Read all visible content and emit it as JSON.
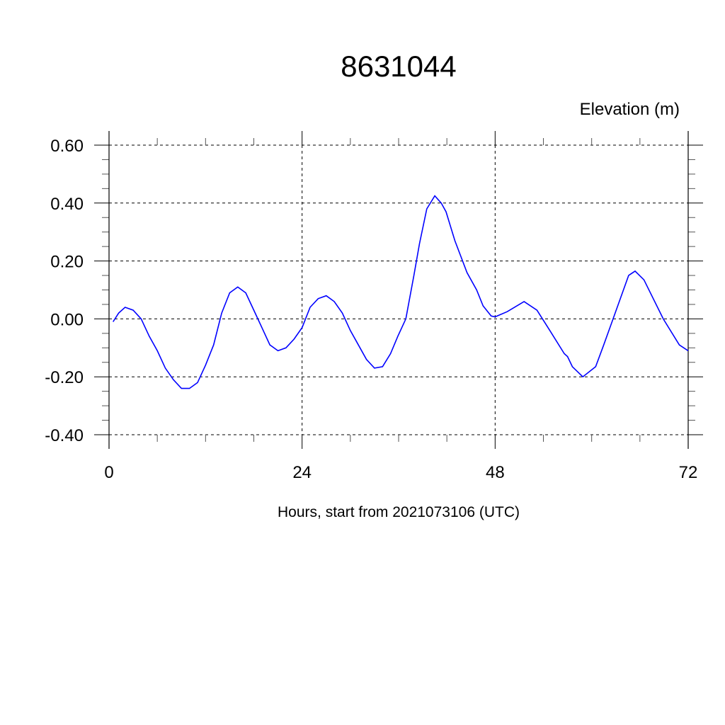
{
  "chart_data": {
    "type": "line",
    "title": "8631044",
    "subtitle": "Elevation (m)",
    "xlabel": "Hours, start from 2021073106 (UTC)",
    "ylabel": "",
    "xlim": [
      0,
      72
    ],
    "ylim": [
      -0.4,
      0.6
    ],
    "xticks": [
      0,
      24,
      48,
      72
    ],
    "xtick_labels": [
      "0",
      "24",
      "48",
      "72"
    ],
    "yticks": [
      0.6,
      0.4,
      0.2,
      0.0,
      -0.2,
      -0.4
    ],
    "ytick_labels": [
      "0.60",
      "0.40",
      "0.20",
      "0.00",
      "-0.20",
      "-0.40"
    ],
    "grid": true,
    "line_color": "#0000ff",
    "series": [
      {
        "name": "Elevation",
        "x": [
          0.5,
          1.2,
          2,
          3,
          4,
          5,
          6,
          7,
          8,
          9,
          10,
          11,
          12,
          13,
          14,
          15,
          16,
          17,
          18,
          19,
          20,
          21,
          22,
          23,
          24,
          25,
          26,
          27,
          28,
          29,
          30,
          31,
          32,
          33,
          34,
          35,
          35.9,
          36.9,
          37.9,
          38.6,
          39.5,
          40.5,
          41.3,
          41.9,
          43,
          44.5,
          45.7,
          46.5,
          47.5,
          48,
          49.5,
          51.6,
          53.2,
          54.8,
          56.6,
          57,
          57.6,
          58.9,
          60.5,
          61.5,
          62.6,
          64.6,
          65.4,
          66.5,
          68.9,
          70.9,
          72
        ],
        "y": [
          -0.01,
          0.02,
          0.04,
          0.03,
          0.0,
          -0.06,
          -0.11,
          -0.17,
          -0.21,
          -0.24,
          -0.24,
          -0.22,
          -0.16,
          -0.09,
          0.02,
          0.09,
          0.11,
          0.09,
          0.03,
          -0.03,
          -0.09,
          -0.11,
          -0.1,
          -0.07,
          -0.03,
          0.04,
          0.07,
          0.08,
          0.06,
          0.02,
          -0.04,
          -0.09,
          -0.14,
          -0.17,
          -0.165,
          -0.12,
          -0.06,
          0.0,
          0.15,
          0.26,
          0.38,
          0.425,
          0.4,
          0.37,
          0.27,
          0.16,
          0.1,
          0.045,
          0.01,
          0.007,
          0.025,
          0.06,
          0.03,
          -0.04,
          -0.12,
          -0.13,
          -0.165,
          -0.2,
          -0.165,
          -0.09,
          -0.005,
          0.15,
          0.165,
          0.135,
          0.0,
          -0.09,
          -0.11
        ]
      }
    ]
  }
}
